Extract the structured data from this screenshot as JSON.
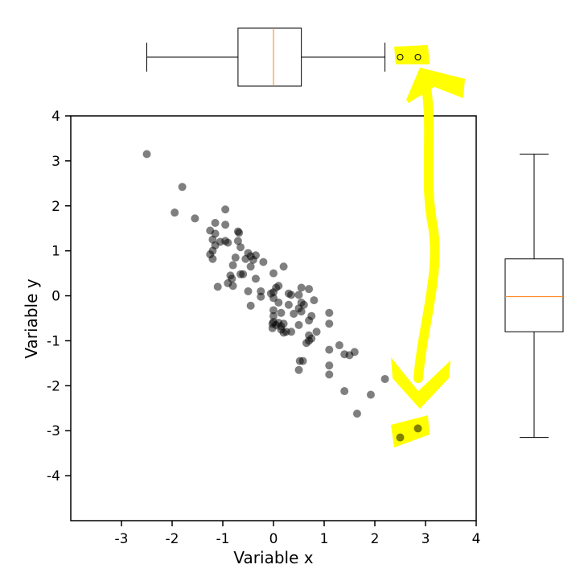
{
  "chart_data": {
    "type": "scatter",
    "xlabel": "Variable x",
    "ylabel": "Variable y",
    "xlim": [
      -4,
      4
    ],
    "ylim": [
      -5,
      4
    ],
    "xticks": [
      -3,
      -2,
      -1,
      0,
      1,
      2,
      3,
      4
    ],
    "yticks": [
      -4,
      -3,
      -2,
      -1,
      0,
      1,
      2,
      3,
      4
    ],
    "xtick_labels": [
      "-3",
      "-2",
      "-1",
      "0",
      "1",
      "2",
      "3",
      "4"
    ],
    "ytick_labels": [
      "-4",
      "-3",
      "-2",
      "-1",
      "0",
      "1",
      "2",
      "3",
      "4"
    ],
    "point_color": "#000000",
    "point_alpha": 0.5,
    "points": [
      [
        -2.5,
        3.15
      ],
      [
        -1.8,
        2.42
      ],
      [
        -1.95,
        1.85
      ],
      [
        -1.55,
        1.72
      ],
      [
        -0.95,
        1.92
      ],
      [
        -1.15,
        1.62
      ],
      [
        -0.95,
        1.58
      ],
      [
        -1.25,
        1.45
      ],
      [
        -1.15,
        1.38
      ],
      [
        -0.7,
        1.43
      ],
      [
        -0.68,
        1.4
      ],
      [
        -1.2,
        1.25
      ],
      [
        -1.05,
        1.2
      ],
      [
        -0.95,
        1.22
      ],
      [
        -0.9,
        1.18
      ],
      [
        -0.7,
        1.22
      ],
      [
        -1.15,
        1.12
      ],
      [
        -0.65,
        1.08
      ],
      [
        -1.2,
        1.0
      ],
      [
        -1.25,
        0.92
      ],
      [
        -1.2,
        0.82
      ],
      [
        -0.75,
        0.85
      ],
      [
        -0.5,
        0.95
      ],
      [
        -0.45,
        0.88
      ],
      [
        -0.35,
        0.9
      ],
      [
        -0.55,
        0.82
      ],
      [
        -0.4,
        0.8
      ],
      [
        -0.2,
        0.75
      ],
      [
        -0.8,
        0.68
      ],
      [
        -0.45,
        0.65
      ],
      [
        0.2,
        0.65
      ],
      [
        -0.65,
        0.48
      ],
      [
        -0.6,
        0.48
      ],
      [
        0.0,
        0.5
      ],
      [
        -0.85,
        0.45
      ],
      [
        -0.82,
        0.38
      ],
      [
        -0.35,
        0.38
      ],
      [
        -0.9,
        0.28
      ],
      [
        -0.8,
        0.22
      ],
      [
        -1.1,
        0.2
      ],
      [
        0.05,
        0.18
      ],
      [
        0.1,
        0.22
      ],
      [
        0.55,
        0.18
      ],
      [
        0.7,
        0.15
      ],
      [
        -0.5,
        0.1
      ],
      [
        -0.25,
        0.1
      ],
      [
        0.0,
        0.08
      ],
      [
        -0.05,
        0.05
      ],
      [
        0.3,
        0.05
      ],
      [
        0.35,
        0.02
      ],
      [
        0.5,
        0.02
      ],
      [
        -0.25,
        -0.02
      ],
      [
        0.0,
        -0.05
      ],
      [
        0.8,
        -0.1
      ],
      [
        0.1,
        -0.15
      ],
      [
        0.55,
        -0.15
      ],
      [
        0.6,
        -0.2
      ],
      [
        0.3,
        -0.2
      ],
      [
        -0.45,
        -0.22
      ],
      [
        0.5,
        -0.28
      ],
      [
        0.55,
        -0.35
      ],
      [
        0.0,
        -0.32
      ],
      [
        0.15,
        -0.38
      ],
      [
        0.4,
        -0.4
      ],
      [
        0.0,
        -0.45
      ],
      [
        0.75,
        -0.45
      ],
      [
        1.1,
        -0.38
      ],
      [
        0.7,
        -0.55
      ],
      [
        0.0,
        -0.58
      ],
      [
        -0.02,
        -0.62
      ],
      [
        0.1,
        -0.6
      ],
      [
        0.05,
        -0.65
      ],
      [
        0.15,
        -0.68
      ],
      [
        0.2,
        -0.62
      ],
      [
        0.5,
        -0.65
      ],
      [
        1.1,
        -0.62
      ],
      [
        -0.02,
        -0.72
      ],
      [
        0.15,
        -0.75
      ],
      [
        0.2,
        -0.82
      ],
      [
        0.25,
        -0.8
      ],
      [
        0.35,
        -0.8
      ],
      [
        0.85,
        -0.8
      ],
      [
        0.7,
        -0.88
      ],
      [
        0.75,
        -0.95
      ],
      [
        0.7,
        -1.0
      ],
      [
        0.65,
        -1.05
      ],
      [
        1.3,
        -1.1
      ],
      [
        1.1,
        -1.2
      ],
      [
        1.6,
        -1.25
      ],
      [
        1.4,
        -1.3
      ],
      [
        1.5,
        -1.32
      ],
      [
        0.52,
        -1.45
      ],
      [
        0.58,
        -1.45
      ],
      [
        1.1,
        -1.55
      ],
      [
        0.5,
        -1.65
      ],
      [
        1.1,
        -1.75
      ],
      [
        2.2,
        -1.85
      ],
      [
        1.4,
        -2.12
      ],
      [
        1.92,
        -2.2
      ],
      [
        1.65,
        -2.62
      ],
      [
        2.85,
        -2.95
      ],
      [
        2.5,
        -3.15
      ]
    ],
    "x_boxplot": {
      "orientation": "horizontal",
      "whisker_low": -2.5,
      "q1": -0.7,
      "median": 0.0,
      "q3": 0.55,
      "whisker_high": 2.2,
      "outliers": [
        2.5,
        2.85
      ],
      "median_color": "#ff7f0e"
    },
    "y_boxplot": {
      "orientation": "vertical",
      "whisker_low": -3.15,
      "q1": -0.8,
      "median": -0.02,
      "q3": 0.82,
      "whisker_high": 3.15,
      "outliers": [],
      "median_color": "#ff7f0e"
    },
    "annotation": {
      "type": "hand-drawn double-headed arrow",
      "color": "#ffff00",
      "connects": "x-boxplot outliers to scatter points (2.5, -3.15) and (2.85, -2.95)"
    }
  }
}
